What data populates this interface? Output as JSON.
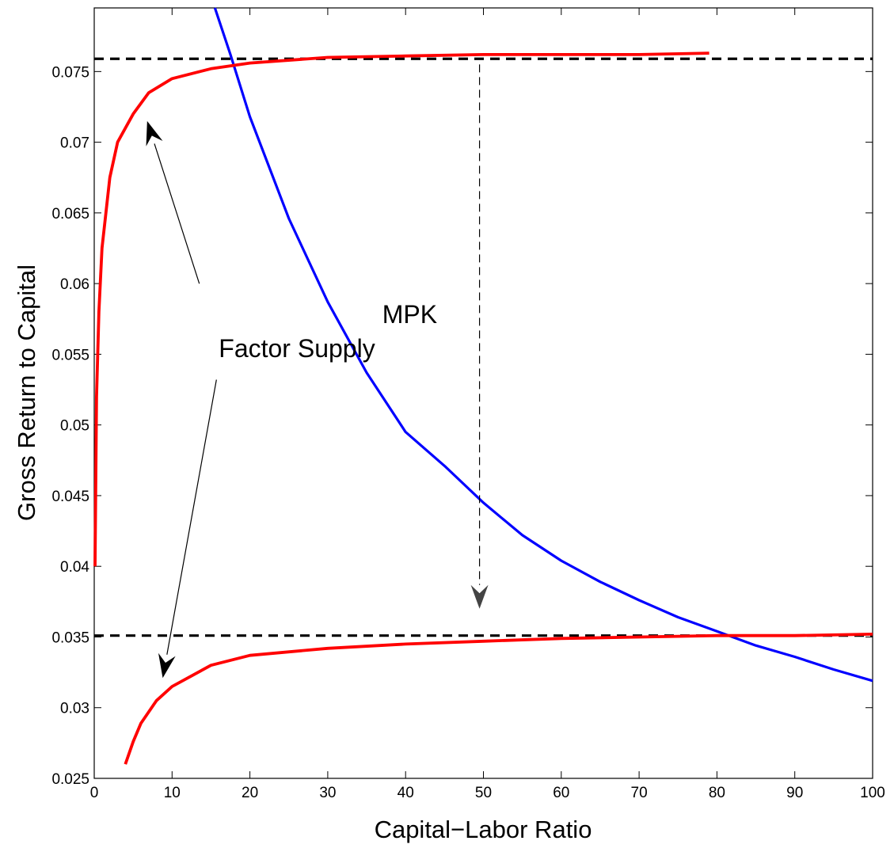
{
  "chart_data": {
    "type": "line",
    "title": "",
    "xlabel": "Capital−Labor Ratio",
    "ylabel": "Gross Return to Capital",
    "xlim": [
      0,
      100
    ],
    "ylim": [
      0.025,
      0.0795
    ],
    "xticks": [
      0,
      10,
      20,
      30,
      40,
      50,
      60,
      70,
      80,
      90,
      100
    ],
    "yticks": [
      0.025,
      0.03,
      0.035,
      0.04,
      0.045,
      0.05,
      0.055,
      0.06,
      0.065,
      0.07,
      0.075
    ],
    "grid": false,
    "series": [
      {
        "name": "MPK",
        "color": "#0000ff",
        "points": [
          [
            15.5,
            0.0795
          ],
          [
            17.5,
            0.0762
          ],
          [
            20,
            0.0718
          ],
          [
            25,
            0.0646
          ],
          [
            30,
            0.0587
          ],
          [
            35,
            0.0537
          ],
          [
            40,
            0.0495
          ],
          [
            45,
            0.0471
          ],
          [
            50,
            0.0445
          ],
          [
            55,
            0.0422
          ],
          [
            60,
            0.0404
          ],
          [
            65,
            0.0389
          ],
          [
            70,
            0.0376
          ],
          [
            75,
            0.0364
          ],
          [
            80,
            0.0354
          ],
          [
            85,
            0.0344
          ],
          [
            90,
            0.0336
          ],
          [
            95,
            0.0327
          ],
          [
            100,
            0.0319
          ]
        ]
      },
      {
        "name": "Factor Supply",
        "color": "#ff0000",
        "points": [
          [
            0.1,
            0.04
          ],
          [
            0.3,
            0.052
          ],
          [
            0.6,
            0.058
          ],
          [
            1,
            0.0625
          ],
          [
            2,
            0.0675
          ],
          [
            3,
            0.07
          ],
          [
            5,
            0.072
          ],
          [
            7,
            0.0735
          ],
          [
            10,
            0.0745
          ],
          [
            15,
            0.0752
          ],
          [
            20,
            0.0756
          ],
          [
            30,
            0.076
          ],
          [
            40,
            0.0761
          ],
          [
            50,
            0.0762
          ],
          [
            60,
            0.0762
          ],
          [
            70,
            0.0762
          ],
          [
            79,
            0.0763
          ]
        ]
      },
      {
        "name": "Factor Supply",
        "color": "#ff0000",
        "points": [
          [
            4,
            0.026
          ],
          [
            5,
            0.0276
          ],
          [
            6,
            0.0289
          ],
          [
            8,
            0.0305
          ],
          [
            10,
            0.0315
          ],
          [
            15,
            0.033
          ],
          [
            20,
            0.0337
          ],
          [
            30,
            0.0342
          ],
          [
            40,
            0.0345
          ],
          [
            50,
            0.0347
          ],
          [
            60,
            0.0349
          ],
          [
            70,
            0.035
          ],
          [
            80,
            0.0351
          ],
          [
            90,
            0.0351
          ],
          [
            100,
            0.0352
          ]
        ]
      }
    ],
    "reference_lines": [
      {
        "y": 0.0759,
        "style": "dashed",
        "color": "#000000"
      },
      {
        "y": 0.0351,
        "style": "dashed",
        "color": "#000000"
      }
    ],
    "annotations": [
      {
        "text": "MPK",
        "x": 37,
        "y": 0.0572
      },
      {
        "text": "Factor Supply",
        "x": 16,
        "y": 0.0548
      }
    ],
    "arrows": [
      {
        "from": [
          13.5,
          0.06
        ],
        "to": [
          6.8,
          0.0715
        ],
        "style": "solid"
      },
      {
        "from": [
          15.7,
          0.0532
        ],
        "to": [
          8.8,
          0.0321
        ],
        "style": "solid"
      },
      {
        "from": [
          49.5,
          0.0755
        ],
        "to": [
          49.5,
          0.037
        ],
        "style": "dashed"
      }
    ]
  }
}
